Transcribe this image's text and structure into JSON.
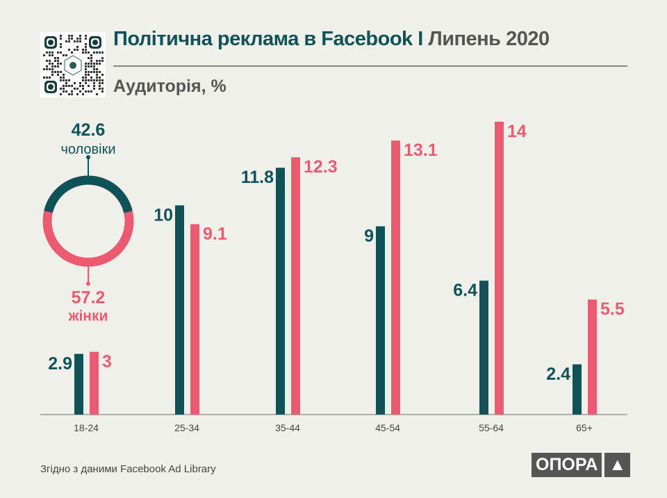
{
  "header": {
    "title_main": "Політична реклама в Facebook I",
    "title_date": "Липень 2020",
    "subtitle": "Аудиторія, %"
  },
  "footer": {
    "source": "Згідно з даними  Facebook Ad Library",
    "logo": "ОПОРА",
    "logo_icon": "triangle-icon"
  },
  "colors": {
    "men": "#0f5257",
    "women": "#ec5a72",
    "bg": "#f0f0eb"
  },
  "chart_data": [
    {
      "type": "pie",
      "title": "",
      "labels": [
        "чоловіки",
        "жінки"
      ],
      "values": [
        42.6,
        57.2
      ],
      "colors": [
        "#0f5257",
        "#ec5a72"
      ]
    },
    {
      "type": "bar",
      "title": "Аудиторія, %",
      "categories": [
        "18-24",
        "25-34",
        "35-44",
        "45-54",
        "55-64",
        "65+"
      ],
      "series": [
        {
          "name": "чоловіки",
          "values": [
            2.9,
            10,
            11.8,
            9,
            6.4,
            2.4
          ]
        },
        {
          "name": "жінки",
          "values": [
            3,
            9.1,
            12.3,
            13.1,
            14,
            5.5
          ]
        }
      ],
      "ylim": [
        0,
        14
      ],
      "xlabel": "",
      "ylabel": "",
      "grid": false
    }
  ]
}
